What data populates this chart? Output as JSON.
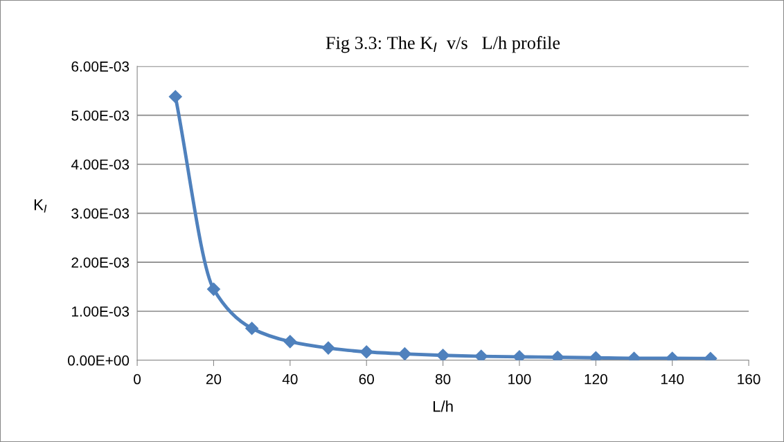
{
  "chart_data": {
    "type": "line",
    "title": "Fig 3.3: The K$_{I}$  v/s   L/h profile",
    "xlabel": "L/h",
    "ylabel": "K$_{I}$",
    "x": [
      10,
      20,
      30,
      40,
      50,
      60,
      70,
      80,
      90,
      100,
      110,
      120,
      130,
      140,
      150
    ],
    "series": [
      {
        "color": "#4f81bd",
        "values": [
          0.00538,
          0.00145,
          0.00065,
          0.00038,
          0.00025,
          0.00017,
          0.00013,
          0.0001,
          8e-05,
          7e-05,
          6e-05,
          5e-05,
          4e-05,
          4e-05,
          3.5e-05
        ]
      }
    ],
    "xlim": [
      0,
      160
    ],
    "xticks": [
      0,
      20,
      40,
      60,
      80,
      100,
      120,
      140,
      160
    ],
    "ylim": [
      0,
      0.006
    ],
    "yticks": [
      {
        "value": 0,
        "label": "0.00E+00"
      },
      {
        "value": 0.001,
        "label": "1.00E-03"
      },
      {
        "value": 0.002,
        "label": "2.00E-03"
      },
      {
        "value": 0.003,
        "label": "3.00E-03"
      },
      {
        "value": 0.004,
        "label": "4.00E-03"
      },
      {
        "value": 0.005,
        "label": "5.00E-03"
      },
      {
        "value": 0.006,
        "label": "6.00E-03"
      }
    ],
    "grid": "y",
    "marker": "diamond",
    "line_style": "solid",
    "legend": false
  }
}
